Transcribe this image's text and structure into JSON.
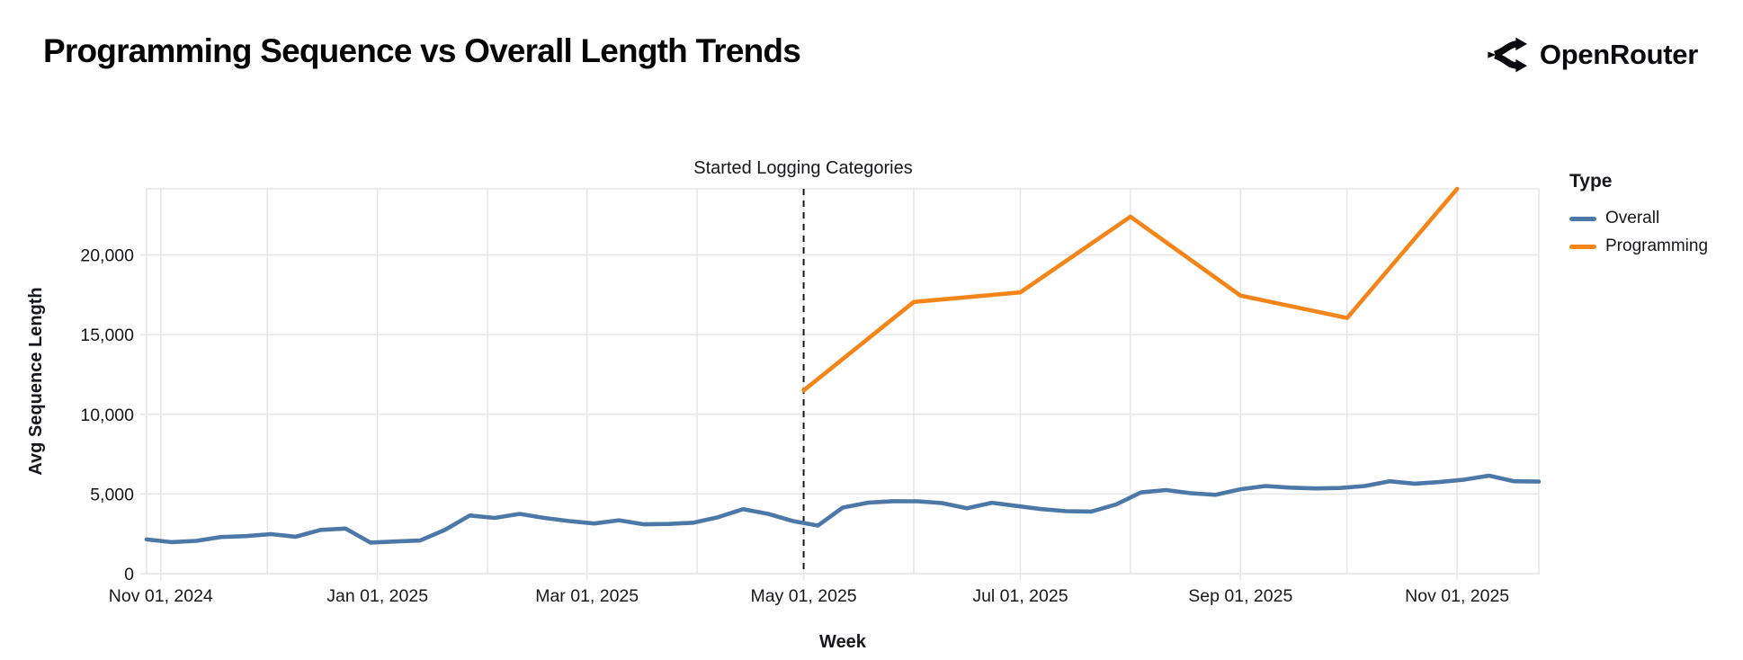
{
  "header": {
    "title": "Programming Sequence vs Overall Length Trends",
    "brand": "OpenRouter"
  },
  "legend": {
    "title": "Type",
    "items": [
      {
        "label": "Overall",
        "color": "#4c78a8"
      },
      {
        "label": "Programming",
        "color": "#f58518"
      }
    ]
  },
  "annotation": {
    "text": "Started Logging Categories",
    "date": "2025-05-01"
  },
  "chart_data": {
    "type": "line",
    "title": "Programming Sequence vs Overall Length Trends",
    "xlabel": "Week",
    "ylabel": "Avg Sequence Length",
    "x_domain": [
      "2024-10-28",
      "2025-11-24"
    ],
    "y_domain": [
      0,
      24150
    ],
    "grid": true,
    "legend_position": "right",
    "y_ticks": [
      {
        "value": 0,
        "label": "0"
      },
      {
        "value": 5000,
        "label": "5,000"
      },
      {
        "value": 10000,
        "label": "10,000"
      },
      {
        "value": 15000,
        "label": "15,000"
      },
      {
        "value": 20000,
        "label": "20,000"
      }
    ],
    "x_ticks": [
      {
        "date": "2024-11-01",
        "label": "Nov 01, 2024"
      },
      {
        "date": "2025-01-01",
        "label": "Jan 01, 2025"
      },
      {
        "date": "2025-03-01",
        "label": "Mar 01, 2025"
      },
      {
        "date": "2025-05-01",
        "label": "May 01, 2025"
      },
      {
        "date": "2025-07-01",
        "label": "Jul 01, 2025"
      },
      {
        "date": "2025-09-01",
        "label": "Sep 01, 2025"
      },
      {
        "date": "2025-11-01",
        "label": "Nov 01, 2025"
      }
    ],
    "month_gridlines": [
      "2024-11-01",
      "2024-12-01",
      "2025-01-01",
      "2025-02-01",
      "2025-03-01",
      "2025-04-01",
      "2025-05-01",
      "2025-06-01",
      "2025-07-01",
      "2025-08-01",
      "2025-09-01",
      "2025-10-01",
      "2025-11-01"
    ],
    "colors": {
      "grid": "#e6e6ea",
      "text": "#16161d",
      "rule": "#16161d"
    },
    "series": [
      {
        "name": "Overall",
        "color": "#4c78a8",
        "dates": [
          "2024-10-28",
          "2024-11-04",
          "2024-11-11",
          "2024-11-18",
          "2024-11-25",
          "2024-12-02",
          "2024-12-09",
          "2024-12-16",
          "2024-12-23",
          "2024-12-30",
          "2025-01-06",
          "2025-01-13",
          "2025-01-20",
          "2025-01-27",
          "2025-02-03",
          "2025-02-10",
          "2025-02-17",
          "2025-02-24",
          "2025-03-03",
          "2025-03-10",
          "2025-03-17",
          "2025-03-24",
          "2025-03-31",
          "2025-04-07",
          "2025-04-14",
          "2025-04-21",
          "2025-04-28",
          "2025-05-05",
          "2025-05-12",
          "2025-05-19",
          "2025-05-26",
          "2025-06-02",
          "2025-06-09",
          "2025-06-16",
          "2025-06-23",
          "2025-06-30",
          "2025-07-07",
          "2025-07-14",
          "2025-07-21",
          "2025-07-28",
          "2025-08-04",
          "2025-08-11",
          "2025-08-18",
          "2025-08-25",
          "2025-09-01",
          "2025-09-08",
          "2025-09-15",
          "2025-09-22",
          "2025-09-29",
          "2025-10-06",
          "2025-10-13",
          "2025-10-20",
          "2025-10-27",
          "2025-11-03",
          "2025-11-10",
          "2025-11-17",
          "2025-11-24"
        ],
        "values": [
          2150,
          1980,
          2060,
          2300,
          2360,
          2480,
          2320,
          2750,
          2830,
          1950,
          2020,
          2080,
          2750,
          3650,
          3500,
          3750,
          3500,
          3300,
          3150,
          3350,
          3100,
          3120,
          3200,
          3550,
          4050,
          3750,
          3300,
          3020,
          4150,
          4450,
          4550,
          4540,
          4430,
          4100,
          4450,
          4250,
          4050,
          3920,
          3900,
          4350,
          5100,
          5250,
          5050,
          4950,
          5300,
          5500,
          5400,
          5350,
          5380,
          5500,
          5800,
          5650,
          5750,
          5900,
          6150,
          5800,
          5780
        ]
      },
      {
        "name": "Programming",
        "color": "#f58518",
        "dates": [
          "2025-05-01",
          "2025-06-01",
          "2025-07-01",
          "2025-08-01",
          "2025-09-01",
          "2025-10-01",
          "2025-11-01"
        ],
        "values": [
          11500,
          17050,
          17650,
          22400,
          17450,
          16050,
          24150
        ]
      }
    ]
  }
}
